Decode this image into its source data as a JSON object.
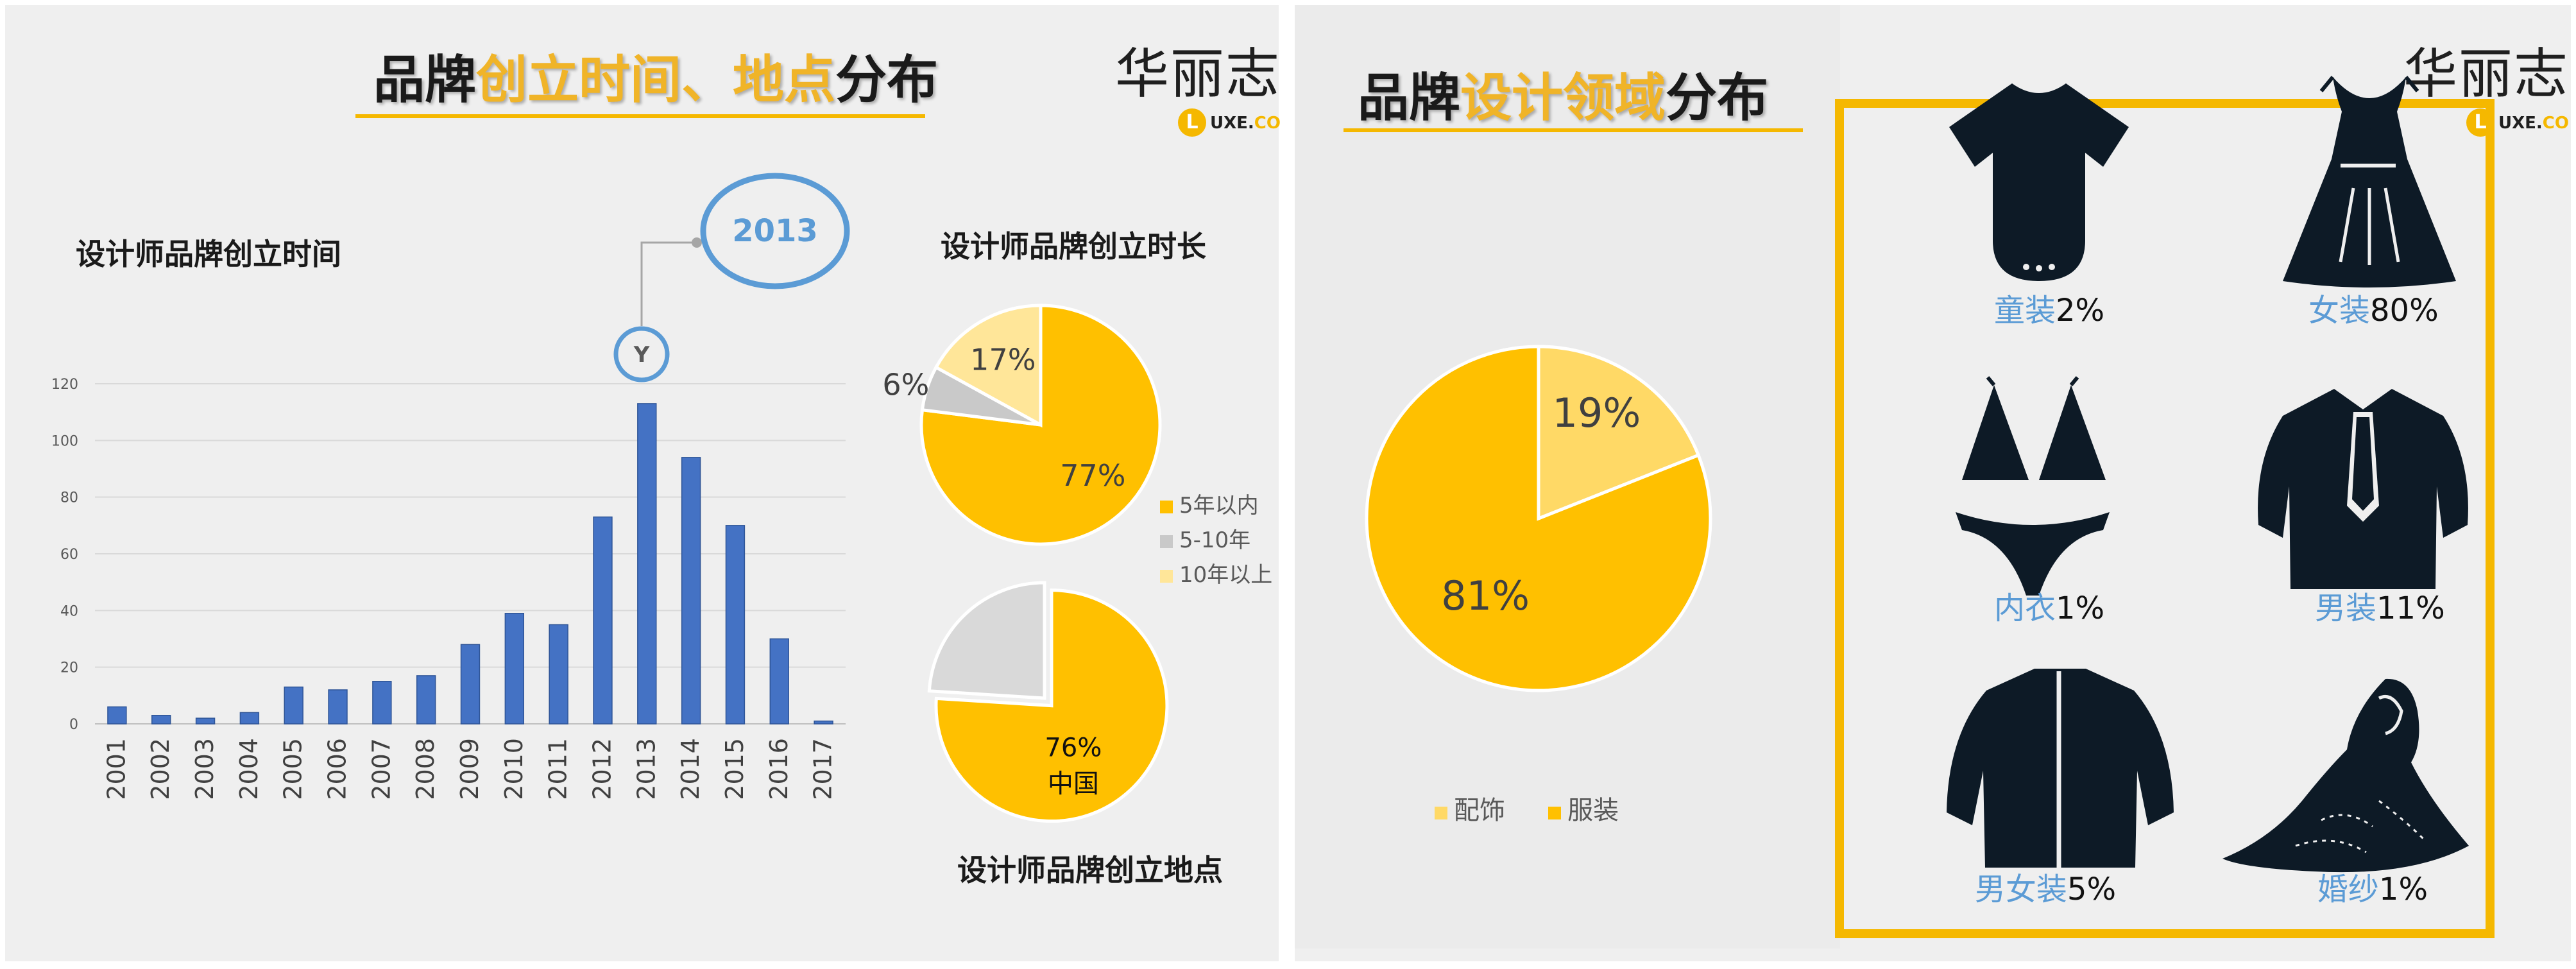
{
  "left_slide": {
    "title_parts": [
      "品牌",
      "创立时间、地点",
      "分布"
    ],
    "logo": {
      "cn": "华丽志",
      "circle": "L",
      "en": "UXE.",
      "en_co": "CO"
    },
    "bar_title": "设计师品牌创立时间",
    "callout": {
      "label": "2013",
      "small_icon": "Y"
    },
    "pie1_title": "设计师品牌创立时长",
    "pie2_title": "设计师品牌创立地点",
    "legend": [
      {
        "label": "5年以内",
        "color": "#ffc000"
      },
      {
        "label": "5-10年",
        "color": "#c9c9c9"
      },
      {
        "label": "10年以上",
        "color": "#ffe699"
      }
    ]
  },
  "right_slide": {
    "title_parts": [
      "品牌",
      "设计领域",
      "分布"
    ],
    "logo": {
      "cn": "华丽志",
      "circle": "L",
      "en": "UXE.",
      "en_co": "CO"
    },
    "legend": [
      {
        "label": "配饰",
        "color": "#ffd966"
      },
      {
        "label": "服装",
        "color": "#ffc000"
      }
    ],
    "icons": [
      {
        "name": "onesie-icon",
        "cat": "童装",
        "pct": "2%"
      },
      {
        "name": "dress-icon",
        "cat": "女装",
        "pct": "80%"
      },
      {
        "name": "bikini-icon",
        "cat": "内衣",
        "pct": "1%"
      },
      {
        "name": "shirt-tie-icon",
        "cat": "男装",
        "pct": "11%"
      },
      {
        "name": "jacket-icon",
        "cat": "男女装",
        "pct": "5%"
      },
      {
        "name": "wedding-gown-icon",
        "cat": "婚纱",
        "pct": "1%"
      }
    ]
  },
  "chart_data": [
    {
      "type": "bar",
      "title": "设计师品牌创立时间",
      "categories": [
        "2001",
        "2002",
        "2003",
        "2004",
        "2005",
        "2006",
        "2007",
        "2008",
        "2009",
        "2010",
        "2011",
        "2012",
        "2013",
        "2014",
        "2015",
        "2016",
        "2017"
      ],
      "values": [
        6,
        3,
        2,
        4,
        13,
        12,
        15,
        17,
        28,
        39,
        35,
        73,
        113,
        94,
        70,
        30,
        1
      ],
      "ylim": [
        0,
        120
      ],
      "yticks": [
        "0",
        "20",
        "40",
        "60",
        "80",
        "100",
        "120"
      ],
      "grid": true,
      "color": "#4472c4"
    },
    {
      "type": "pie",
      "title": "设计师品牌创立时长",
      "labels": [
        "5年以内",
        "5-10年",
        "10年以上"
      ],
      "values": [
        77,
        6,
        17
      ],
      "value_labels": [
        "77%",
        "6%",
        "17%"
      ],
      "colors": [
        "#ffc000",
        "#c9c9c9",
        "#ffe699"
      ],
      "legend": "right"
    },
    {
      "type": "pie",
      "title": "设计师品牌创立地点",
      "labels": [
        "中国",
        ""
      ],
      "values": [
        76,
        24
      ],
      "value_labels": [
        "76%",
        ""
      ],
      "colors": [
        "#ffc000",
        "#d9d9d9"
      ]
    },
    {
      "type": "pie",
      "title": "",
      "labels": [
        "配饰",
        "服装"
      ],
      "values": [
        19,
        81
      ],
      "value_labels": [
        "19%",
        "81%"
      ],
      "colors": [
        "#ffd966",
        "#ffc000"
      ],
      "legend": "bottom"
    }
  ]
}
